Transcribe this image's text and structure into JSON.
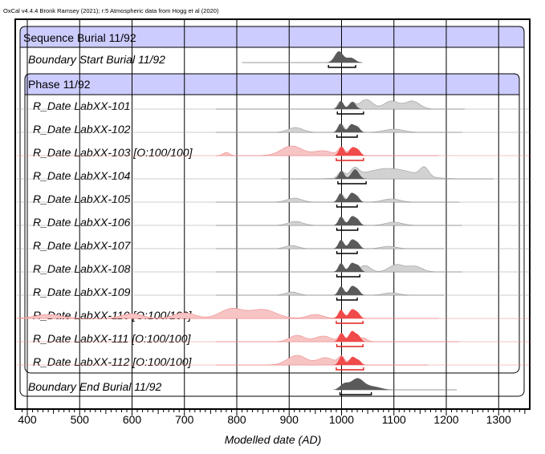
{
  "header": {
    "credit": "OxCal v4.4.4 Bronk Ramsey (2021); r:5 Atmospheric data from Hogg et al (2020)"
  },
  "chart_data": {
    "type": "multiple-plot",
    "title": "",
    "xlabel": "Modelled date (AD)",
    "ylabel": "",
    "xlim": [
      385,
      1355
    ],
    "xticks": [
      400,
      500,
      600,
      700,
      800,
      900,
      1000,
      1100,
      1200,
      1300
    ],
    "grid": true,
    "colors": {
      "posterior": "#5a5a5a",
      "prior": "#d2d2d2",
      "outlier_posterior": "#f04a4a",
      "outlier_prior": "#f7c4c4",
      "group_header": "#ccccff",
      "line": "#777777"
    },
    "sequence": {
      "title": "Sequence Burial 11/92",
      "phase_title": "Phase 11/92"
    },
    "rows": [
      {
        "label": "Boundary Start Burial 11/92",
        "kind": "boundary",
        "outlier": false,
        "extent": [
          810,
          1040
        ],
        "prior_peaks": [],
        "post_peaks": [
          [
            995,
            14,
            8
          ],
          [
            1018,
            6,
            8
          ]
        ],
        "range": [
          975,
          1027
        ]
      },
      {
        "label": "R_Date LabXX-101",
        "kind": "date",
        "outlier": false,
        "extent": [
          760,
          1235
        ],
        "prior_peaks": [
          [
            998,
            10,
            5
          ],
          [
            1020,
            8,
            6
          ],
          [
            1047,
            12,
            12
          ],
          [
            1095,
            10,
            14
          ],
          [
            1135,
            10,
            14
          ]
        ],
        "post_peaks": [
          [
            999,
            10,
            5
          ],
          [
            1021,
            9,
            6
          ]
        ],
        "range": [
          992,
          1042
        ]
      },
      {
        "label": "R_Date LabXX-102",
        "kind": "date",
        "outlier": false,
        "extent": [
          760,
          1230
        ],
        "prior_peaks": [
          [
            912,
            6,
            14
          ],
          [
            1000,
            10,
            5
          ],
          [
            1020,
            9,
            6
          ],
          [
            1100,
            4,
            18
          ]
        ],
        "post_peaks": [
          [
            998,
            11,
            5
          ],
          [
            1019,
            10,
            6
          ],
          [
            1031,
            6,
            5
          ]
        ],
        "range": [
          991,
          1030
        ]
      },
      {
        "label": "R_Date LabXX-103 [O:100/100]",
        "kind": "date",
        "outlier": true,
        "extent": [
          760,
          1185
        ],
        "prior_peaks": [
          [
            780,
            4,
            6
          ],
          [
            905,
            12,
            20
          ],
          [
            965,
            6,
            18
          ],
          [
            1000,
            10,
            6
          ],
          [
            1020,
            9,
            6
          ]
        ],
        "post_peaks": [
          [
            1000,
            11,
            5
          ],
          [
            1021,
            10,
            6
          ],
          [
            1032,
            6,
            5
          ]
        ],
        "range": [
          990,
          1042
        ]
      },
      {
        "label": "R_Date LabXX-104",
        "kind": "date",
        "outlier": false,
        "extent": [
          885,
          1290
        ],
        "prior_peaks": [
          [
            1000,
            8,
            6
          ],
          [
            1025,
            10,
            8
          ],
          [
            1090,
            13,
            45
          ],
          [
            1158,
            11,
            8
          ]
        ],
        "post_peaks": [
          [
            1000,
            10,
            5
          ],
          [
            1026,
            12,
            7
          ]
        ],
        "range": [
          993,
          1047
        ]
      },
      {
        "label": "R_Date LabXX-105",
        "kind": "date",
        "outlier": false,
        "extent": [
          760,
          1225
        ],
        "prior_peaks": [
          [
            910,
            5,
            14
          ],
          [
            1000,
            10,
            5
          ],
          [
            1020,
            9,
            6
          ],
          [
            1095,
            4,
            16
          ]
        ],
        "post_peaks": [
          [
            998,
            11,
            5
          ],
          [
            1019,
            11,
            6
          ],
          [
            1030,
            6,
            5
          ]
        ],
        "range": [
          991,
          1030
        ]
      },
      {
        "label": "R_Date LabXX-106",
        "kind": "date",
        "outlier": false,
        "extent": [
          760,
          1230
        ],
        "prior_peaks": [
          [
            912,
            5,
            14
          ],
          [
            1000,
            10,
            5
          ],
          [
            1020,
            9,
            6
          ],
          [
            1100,
            4,
            16
          ]
        ],
        "post_peaks": [
          [
            999,
            11,
            5
          ],
          [
            1020,
            11,
            6
          ],
          [
            1031,
            6,
            5
          ]
        ],
        "range": [
          991,
          1031
        ]
      },
      {
        "label": "R_Date LabXX-107",
        "kind": "date",
        "outlier": false,
        "extent": [
          760,
          1195
        ],
        "prior_peaks": [
          [
            905,
            4,
            12
          ],
          [
            1000,
            10,
            5
          ],
          [
            1020,
            9,
            6
          ],
          [
            1090,
            3,
            14
          ]
        ],
        "post_peaks": [
          [
            999,
            11,
            5
          ],
          [
            1020,
            11,
            6
          ],
          [
            1031,
            6,
            5
          ]
        ],
        "range": [
          991,
          1030
        ]
      },
      {
        "label": "R_Date LabXX-108",
        "kind": "date",
        "outlier": false,
        "extent": [
          760,
          1230
        ],
        "prior_peaks": [
          [
            1000,
            10,
            5
          ],
          [
            1022,
            9,
            6
          ],
          [
            1045,
            8,
            10
          ],
          [
            1105,
            9,
            14
          ],
          [
            1140,
            7,
            14
          ]
        ],
        "post_peaks": [
          [
            999,
            11,
            5
          ],
          [
            1020,
            11,
            6
          ],
          [
            1032,
            7,
            5
          ]
        ],
        "range": [
          991,
          1035
        ]
      },
      {
        "label": "R_Date LabXX-109",
        "kind": "date",
        "outlier": false,
        "extent": [
          760,
          1195
        ],
        "prior_peaks": [
          [
            905,
            4,
            12
          ],
          [
            1000,
            10,
            5
          ],
          [
            1020,
            9,
            6
          ],
          [
            1095,
            3,
            14
          ]
        ],
        "post_peaks": [
          [
            999,
            11,
            5
          ],
          [
            1020,
            11,
            6
          ],
          [
            1031,
            6,
            5
          ]
        ],
        "range": [
          991,
          1030
        ]
      },
      {
        "label": "R_Date LabXX-110 [O:100/100]",
        "kind": "date",
        "outlier": true,
        "extent": [
          395,
          1185
        ],
        "prior_peaks": [
          [
            440,
            5,
            25
          ],
          [
            600,
            6,
            20
          ],
          [
            700,
            7,
            20
          ],
          [
            790,
            12,
            22
          ],
          [
            850,
            11,
            25
          ],
          [
            950,
            5,
            15
          ],
          [
            1000,
            8,
            6
          ],
          [
            1020,
            7,
            6
          ]
        ],
        "post_peaks": [
          [
            999,
            11,
            5
          ],
          [
            1020,
            11,
            6
          ],
          [
            1031,
            6,
            5
          ]
        ],
        "range": [
          990,
          1041
        ]
      },
      {
        "label": "R_Date LabXX-111 [O:100/100]",
        "kind": "date",
        "outlier": true,
        "extent": [
          760,
          1225
        ],
        "prior_peaks": [
          [
            915,
            8,
            14
          ],
          [
            965,
            7,
            16
          ],
          [
            1000,
            10,
            5
          ],
          [
            1020,
            12,
            6
          ],
          [
            1040,
            5,
            8
          ]
        ],
        "post_peaks": [
          [
            1000,
            11,
            5
          ],
          [
            1020,
            13,
            6
          ],
          [
            1032,
            7,
            5
          ]
        ],
        "range": [
          991,
          1041
        ]
      },
      {
        "label": "R_Date LabXX-112 [O:100/100]",
        "kind": "date",
        "outlier": true,
        "extent": [
          760,
          1165
        ],
        "prior_peaks": [
          [
            915,
            12,
            18
          ],
          [
            970,
            9,
            16
          ],
          [
            1000,
            10,
            6
          ],
          [
            1020,
            8,
            6
          ]
        ],
        "post_peaks": [
          [
            1000,
            11,
            5
          ],
          [
            1021,
            10,
            6
          ],
          [
            1033,
            5,
            5
          ]
        ],
        "range": [
          990,
          1042
        ]
      },
      {
        "label": "Boundary End Burial 11/92",
        "kind": "boundary",
        "outlier": false,
        "extent": [
          990,
          1220
        ],
        "prior_peaks": [],
        "post_peaks": [
          [
            1005,
            7,
            8
          ],
          [
            1030,
            14,
            12
          ],
          [
            1060,
            4,
            15
          ]
        ],
        "range": [
          997,
          1057
        ]
      }
    ]
  }
}
